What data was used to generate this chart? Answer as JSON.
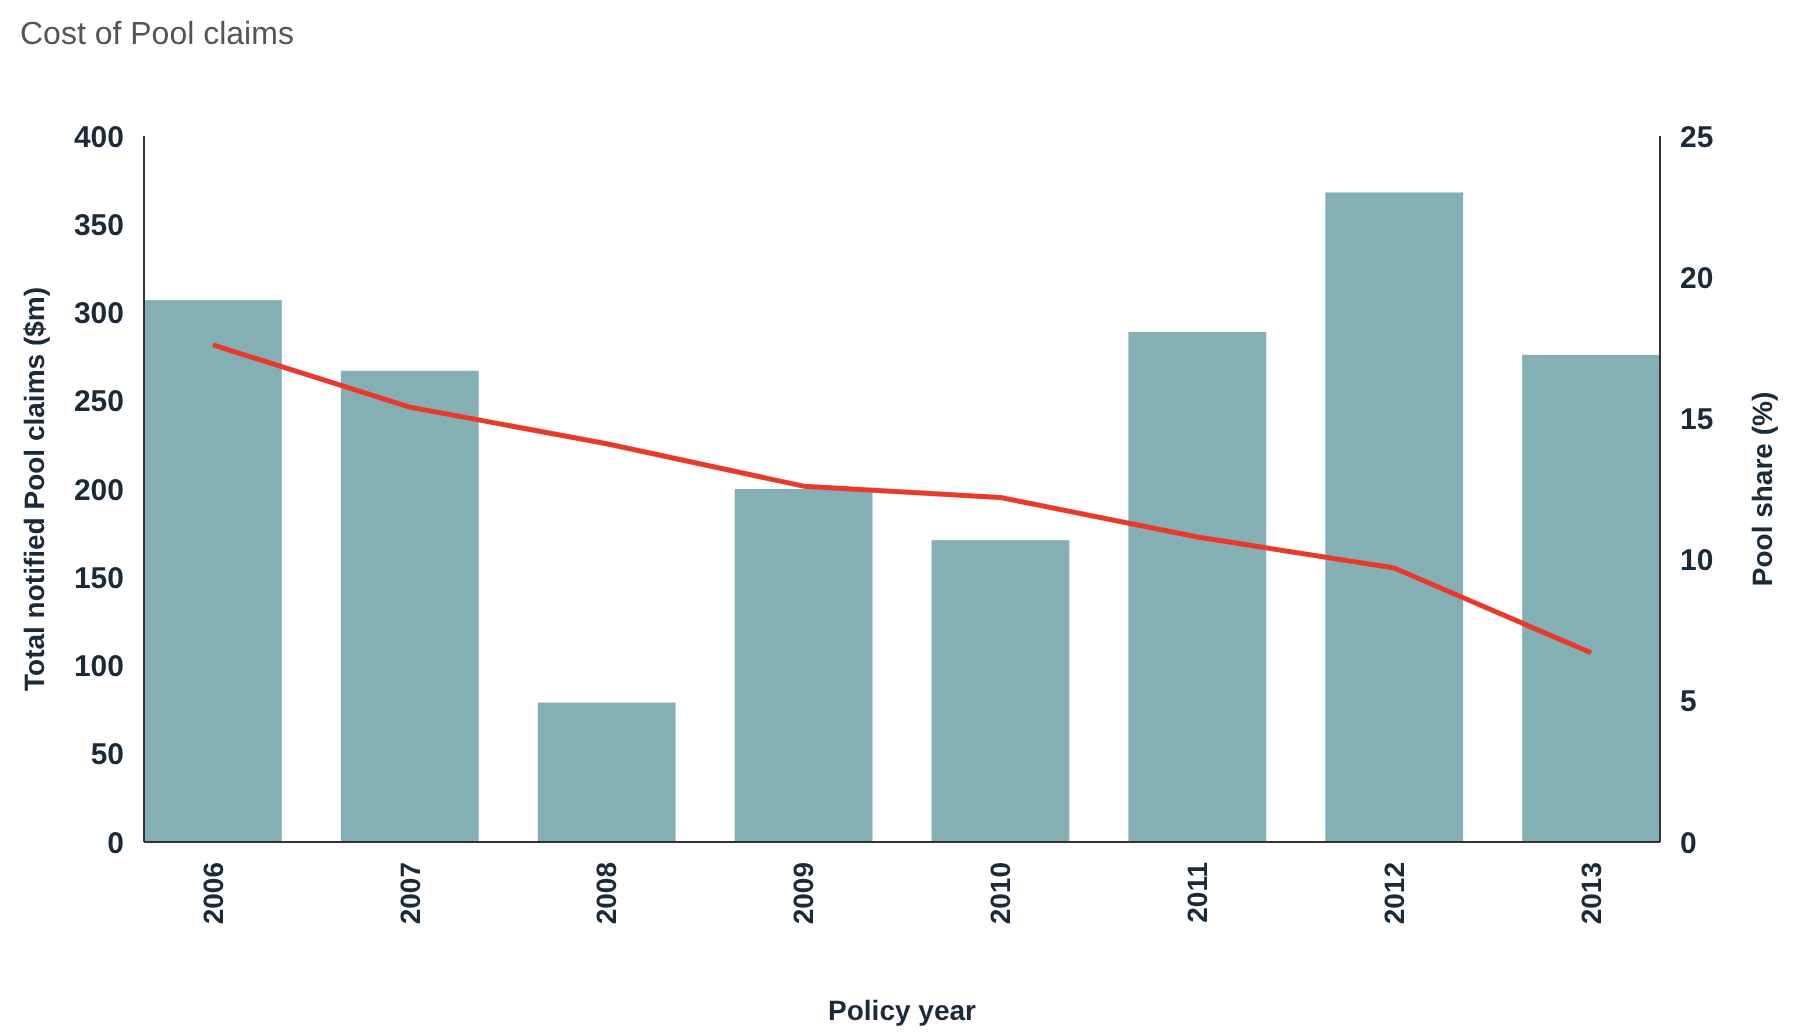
{
  "chart_data": {
    "type": "bar",
    "title": "Cost of Pool claims",
    "xlabel": "Policy year",
    "ylabel": "Total notified Pool claims ($m)",
    "y2label": "Pool share (%)",
    "categories": [
      "2006",
      "2007",
      "2008",
      "2009",
      "2010",
      "2011",
      "2012",
      "2013"
    ],
    "series": [
      {
        "color": "#84afb5",
        "values": [
          307,
          267,
          79,
          200,
          171,
          289,
          368,
          276
        ]
      },
      {
        "type": "line",
        "axis": "y2",
        "color": "#e8392a",
        "values": [
          17.6,
          15.4,
          14.1,
          12.6,
          12.2,
          10.8,
          9.7,
          6.7
        ]
      }
    ],
    "ylim": [
      0,
      400
    ],
    "yticks": [
      0,
      50,
      100,
      150,
      200,
      250,
      300,
      350,
      400
    ],
    "y2lim": [
      0,
      25
    ],
    "y2ticks": [
      0,
      5,
      10,
      15,
      20,
      25
    ],
    "grid": false,
    "marker": "none"
  }
}
